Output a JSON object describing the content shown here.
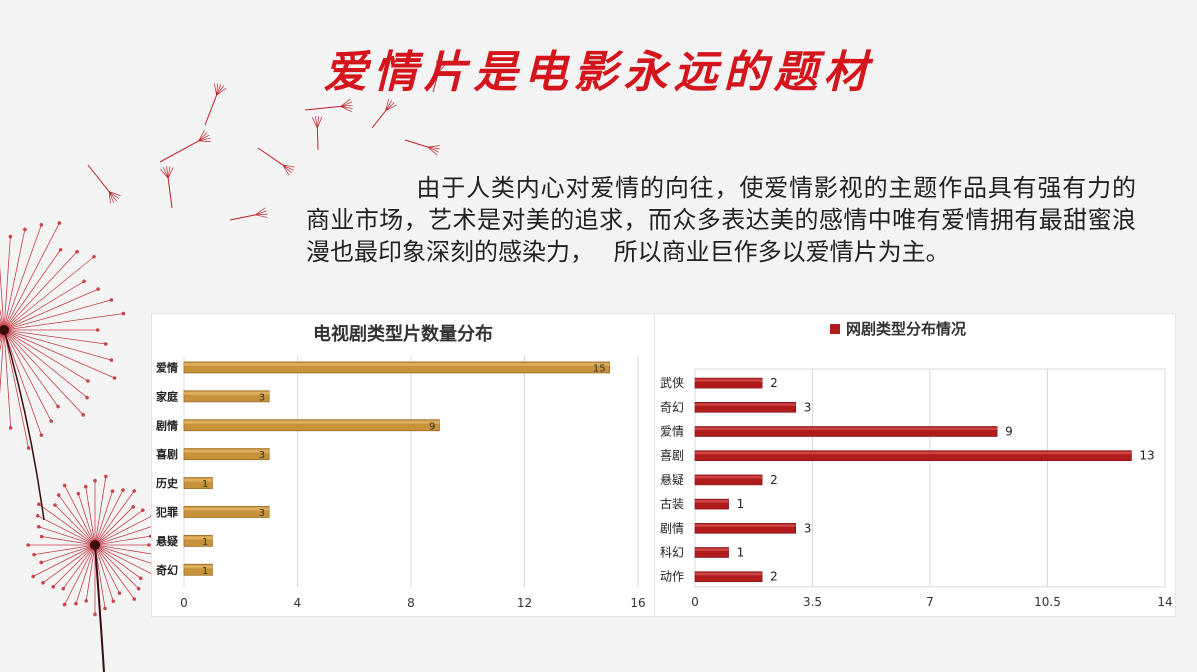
{
  "page": {
    "title": "爱情片是电影永远的题材",
    "paragraph": "由于人类内心对爱情的向往，使爱情影视的主题作品具有强有力的商业市场，艺术是对美的追求，而众多表达美的感情中唯有爱情拥有最甜蜜浪漫也最印象深刻的感染力，　 所以商业巨作多以爱情片为主。"
  },
  "colors": {
    "title": "#d4151c",
    "tv_bar": "#c8923a",
    "tv_bar_highlight": "#e2b565",
    "web_bar": "#b01c1c",
    "grid": "#d9d9d9",
    "decoration": "#c0202a"
  },
  "chart_data": [
    {
      "type": "bar",
      "orientation": "horizontal",
      "title": "电视剧类型片数量分布",
      "categories": [
        "爱情",
        "家庭",
        "剧情",
        "喜剧",
        "历史",
        "犯罪",
        "悬疑",
        "奇幻"
      ],
      "values": [
        15,
        3,
        9,
        3,
        1,
        3,
        1,
        1
      ],
      "xlim": [
        0,
        16
      ],
      "xticks": [
        "0",
        "4",
        "8",
        "12",
        "16"
      ],
      "data_labels": true,
      "grid": "vertical"
    },
    {
      "type": "bar",
      "orientation": "horizontal",
      "title": "网剧类型分布情况",
      "legend": "top",
      "categories": [
        "武侠",
        "奇幻",
        "爱情",
        "喜剧",
        "悬疑",
        "古装",
        "剧情",
        "科幻",
        "动作"
      ],
      "values": [
        2,
        3,
        9,
        13,
        2,
        1,
        3,
        1,
        2
      ],
      "xlim": [
        0,
        14
      ],
      "xticks": [
        "0",
        "3.5",
        "7",
        "10.5",
        "14"
      ],
      "data_labels": true,
      "grid": "vertical"
    }
  ]
}
